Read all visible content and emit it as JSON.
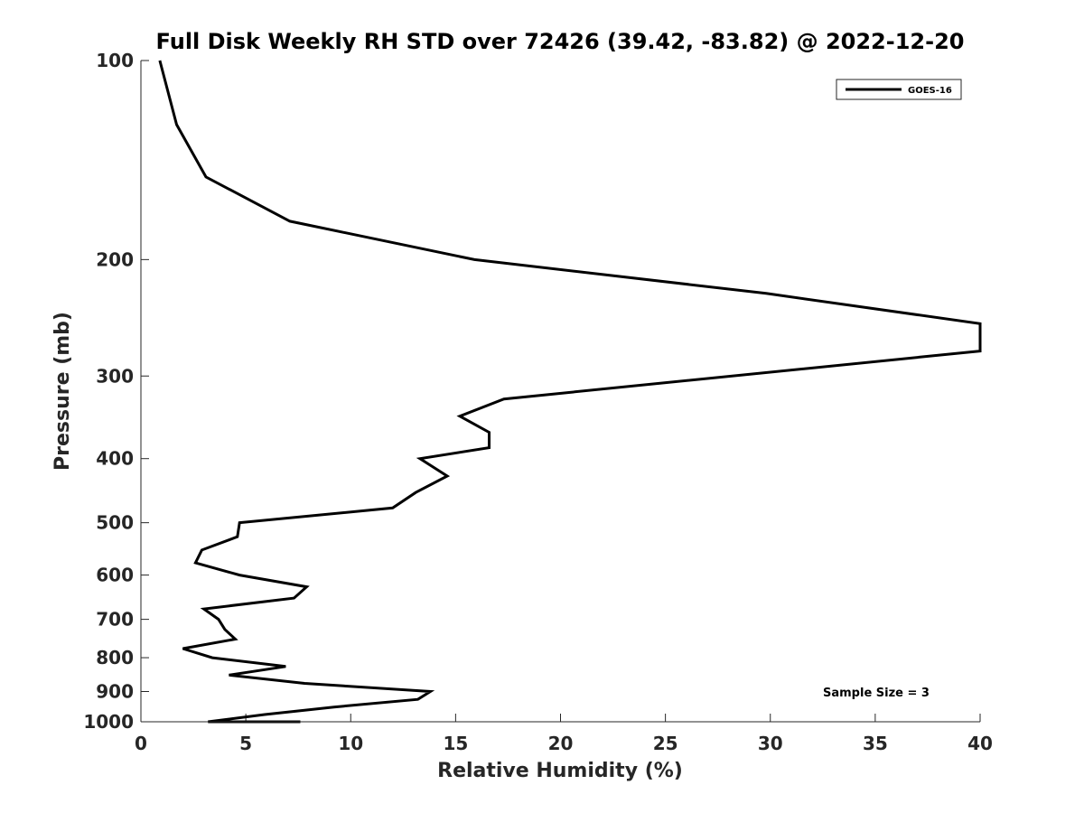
{
  "chart_data": {
    "type": "line",
    "title": "Full Disk Weekly RH STD over 72426 (39.42, -83.82) @ 2022-12-20",
    "xlabel": "Relative Humidity (%)",
    "ylabel": "Pressure (mb)",
    "xlim": [
      0,
      40
    ],
    "ylim": [
      100,
      1000
    ],
    "yscale": "log",
    "yreversed": true,
    "grid": false,
    "xticks": [
      0,
      5,
      10,
      15,
      20,
      25,
      30,
      35,
      40
    ],
    "yticks": [
      100,
      200,
      300,
      400,
      500,
      600,
      700,
      800,
      900,
      1000
    ],
    "legend": {
      "position": "top-right",
      "entries": [
        "GOES-16"
      ]
    },
    "annotation": "Sample Size = 3",
    "series": [
      {
        "name": "GOES-16",
        "color": "#000000",
        "x": [
          0.9,
          1.7,
          3.1,
          7.1,
          15.9,
          29.8,
          40.0,
          40.0,
          17.3,
          15.2,
          16.6,
          16.6,
          13.3,
          14.6,
          13.1,
          12.0,
          4.7,
          4.6,
          2.9,
          2.6,
          4.7,
          7.9,
          7.3,
          3.0,
          3.7,
          4.0,
          4.5,
          2.0,
          3.4,
          6.9,
          4.2,
          7.8,
          13.8,
          13.2,
          9.2,
          5.9,
          3.2,
          4.8,
          7.4,
          7.6,
          4.7
        ],
        "y": [
          100,
          125,
          150,
          175,
          200,
          225,
          250,
          275,
          325,
          345,
          365,
          385,
          400,
          425,
          450,
          475,
          500,
          525,
          550,
          575,
          600,
          625,
          650,
          675,
          700,
          725,
          750,
          775,
          800,
          825,
          850,
          875,
          900,
          925,
          950,
          975,
          1000,
          1000,
          1000,
          1000,
          1000
        ]
      }
    ]
  }
}
